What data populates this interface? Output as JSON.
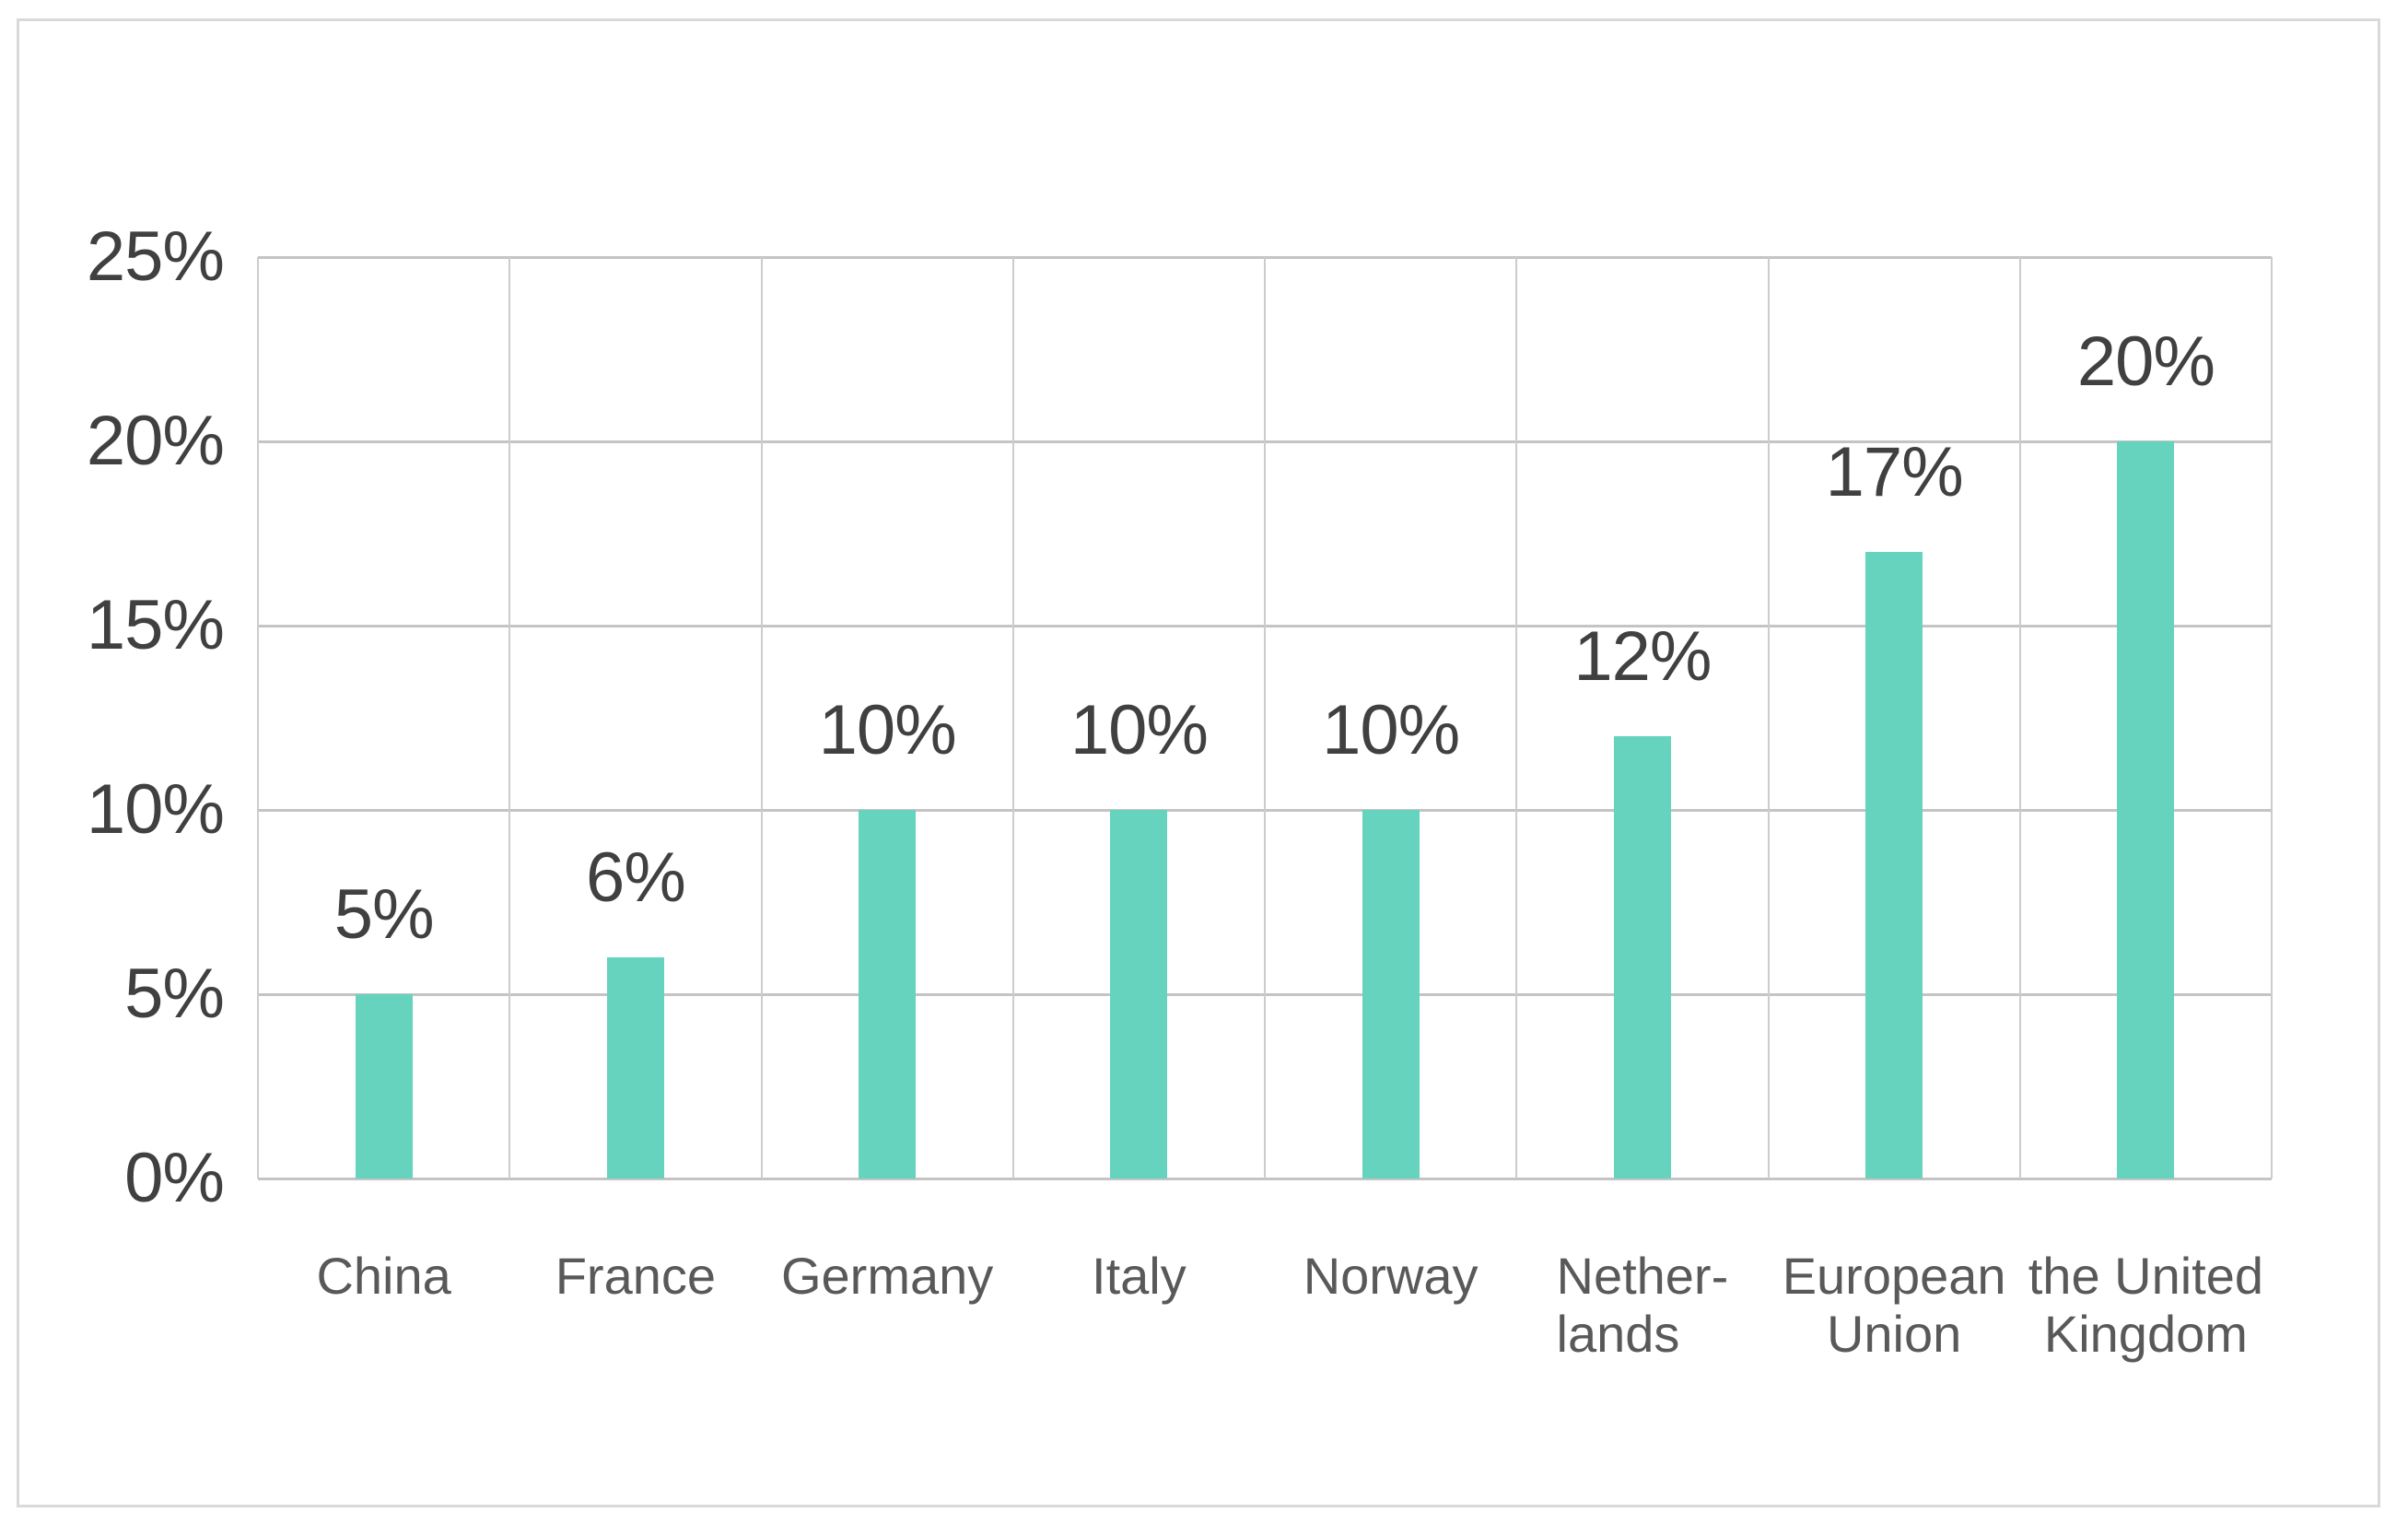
{
  "chart_data": {
    "type": "bar",
    "title": "",
    "xlabel": "",
    "ylabel": "",
    "legend": "none",
    "grid": true,
    "ylim": [
      0,
      25
    ],
    "categories": [
      "China",
      "France",
      "Germany",
      "Italy",
      "Norway",
      "Netherlands",
      "European Union",
      "the United Kingdom"
    ],
    "category_display": [
      [
        "China"
      ],
      [
        "France"
      ],
      [
        "Germany"
      ],
      [
        "Italy"
      ],
      [
        "Norway"
      ],
      [
        "Nether-",
        "lands"
      ],
      [
        "European",
        "Union"
      ],
      [
        "the United",
        "Kingdom"
      ]
    ],
    "category_align": [
      "center",
      "center",
      "center",
      "center",
      "center",
      "left",
      "center",
      "center"
    ],
    "values": [
      5,
      6,
      10,
      10,
      10,
      12,
      17,
      20
    ],
    "value_labels": [
      "5%",
      "6%",
      "10%",
      "10%",
      "10%",
      "12%",
      "17%",
      "20%"
    ],
    "y_ticks": [
      {
        "value": 0,
        "label": "0%"
      },
      {
        "value": 5,
        "label": "5%"
      },
      {
        "value": 10,
        "label": "10%"
      },
      {
        "value": 15,
        "label": "15%"
      },
      {
        "value": 20,
        "label": "20%"
      },
      {
        "value": 25,
        "label": "25%"
      }
    ],
    "colors": {
      "bar": "#65D3BE",
      "gridline_horizontal": "#C4C4C4",
      "gridline_vertical": "#CCCCCC",
      "value_label": "#404040",
      "axis_tick_label": "#404040",
      "category_label": "#595959",
      "frame_border": "#D9D9D9",
      "background": "#FFFFFF"
    }
  }
}
